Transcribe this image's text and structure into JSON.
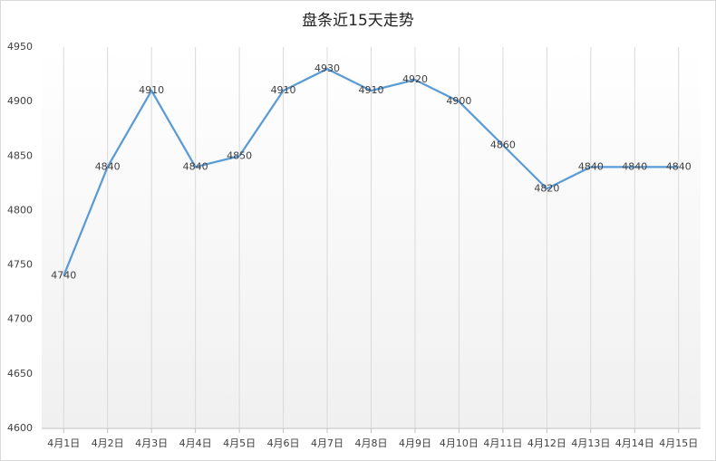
{
  "chart_data": {
    "type": "line",
    "title": "盘条近15天走势",
    "categories": [
      "4月1日",
      "4月2日",
      "4月3日",
      "4月4日",
      "4月5日",
      "4月6日",
      "4月7日",
      "4月8日",
      "4月9日",
      "4月10日",
      "4月11日",
      "4月12日",
      "4月13日",
      "4月14日",
      "4月15日"
    ],
    "values": [
      4740,
      4840,
      4910,
      4840,
      4850,
      4910,
      4930,
      4910,
      4920,
      4900,
      4860,
      4820,
      4840,
      4840,
      4840
    ],
    "color": "#5b9bd5",
    "ylim": [
      4600,
      4950
    ],
    "yticks": [
      4600,
      4650,
      4700,
      4750,
      4800,
      4850,
      4900,
      4950
    ],
    "grid": false,
    "vertical_grid": true,
    "data_labels": true
  }
}
